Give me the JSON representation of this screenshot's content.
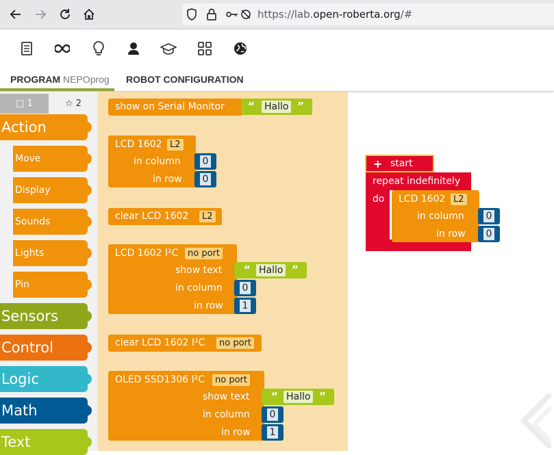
{
  "browser": {
    "url_prefix": "https://lab.",
    "url_host": "open-roberta.org",
    "url_suffix": "/#"
  },
  "toolbar_icons": [
    "program-icon",
    "connect-icon",
    "help-icon",
    "user-icon",
    "gallery-icon",
    "tutorial-icon",
    "language-icon"
  ],
  "tabs": {
    "program": "PROGRAM",
    "program_name": "NEPOprog",
    "robot_config": "ROBOT CONFIGURATION"
  },
  "toolbox": {
    "level1": "□ 1",
    "level2": "☆ 2",
    "categories": [
      {
        "label": "Action",
        "color": "#f0920a"
      },
      {
        "label": "Move",
        "color": "#f0920a"
      },
      {
        "label": "Display",
        "color": "#f0920a"
      },
      {
        "label": "Sounds",
        "color": "#f0920a"
      },
      {
        "label": "Lights",
        "color": "#f0920a"
      },
      {
        "label": "Pin",
        "color": "#f0920a"
      },
      {
        "label": "Sensors",
        "color": "#8fa61b"
      },
      {
        "label": "Control",
        "color": "#eb7110"
      },
      {
        "label": "Logic",
        "color": "#33b8ca"
      },
      {
        "label": "Math",
        "color": "#005a94"
      },
      {
        "label": "Text",
        "color": "#a7c71b"
      }
    ]
  },
  "flyout": {
    "serial": {
      "label": "show on Serial Monitor",
      "text": "Hallo"
    },
    "lcd": {
      "label": "LCD 1602",
      "port": "L2",
      "col_label": "in column",
      "col": "0",
      "row_label": "in row",
      "row": "0"
    },
    "clear_lcd": {
      "label": "clear  LCD 1602",
      "port": "L2"
    },
    "lcd_i2c": {
      "label": "LCD 1602 I²C",
      "port": "no port",
      "text_label": "show text",
      "text": "Hallo",
      "col_label": "in column",
      "col": "0",
      "row_label": "in row",
      "row": "1"
    },
    "clear_i2c": {
      "label": "clear  LCD 1602 I²C",
      "port": "no port"
    },
    "oled": {
      "label": "OLED SSD1306 I²C",
      "port": "no port",
      "text_label": "show text",
      "text": "Hallo",
      "col_label": "in column",
      "col": "0",
      "row_label": "in row",
      "row": "1"
    }
  },
  "workspace": {
    "start": "start",
    "repeat": "repeat indefinitely",
    "do": "do",
    "lcd": {
      "label": "LCD 1602",
      "port": "L2",
      "col_label": "in column",
      "col": "0",
      "row_label": "in row",
      "row": "0"
    }
  },
  "colors": {
    "action": "#f0920a",
    "flyout_bg": "#f9dfae",
    "start_red": "#e0092c",
    "text_green": "#a7c71b",
    "number_blue": "#0b5a8f"
  }
}
